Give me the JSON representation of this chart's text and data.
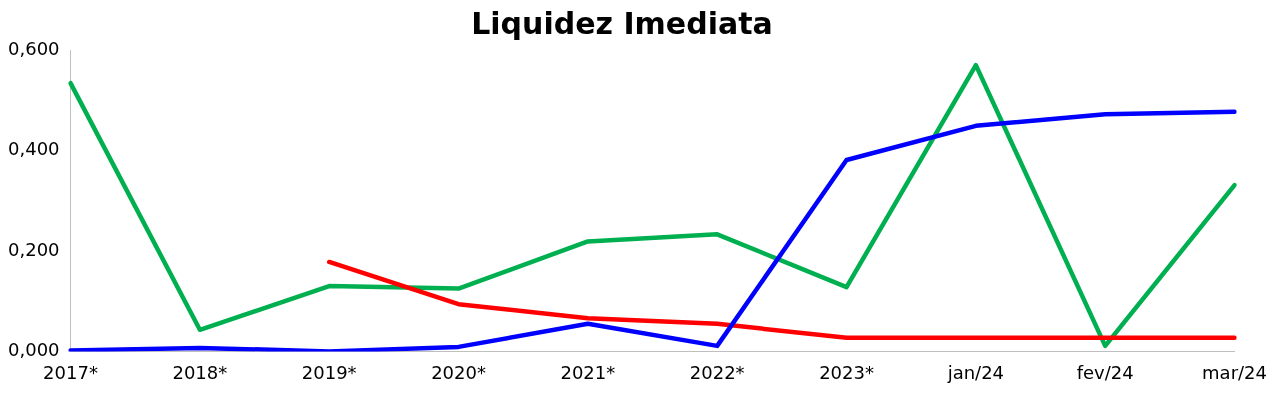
{
  "chart_data": {
    "type": "line",
    "title": "Liquidez Imediata",
    "categories": [
      "2017*",
      "2018*",
      "2019*",
      "2020*",
      "2021*",
      "2022*",
      "2023*",
      "jan/24",
      "fev/24",
      "mar/24"
    ],
    "series": [
      {
        "color": "#0000ff",
        "values": [
          0.002,
          0.007,
          0.0,
          0.009,
          0.055,
          0.011,
          0.381,
          0.449,
          0.472,
          0.477
        ]
      },
      {
        "color": "#ff0000",
        "values": [
          null,
          null,
          0.178,
          0.094,
          0.066,
          0.055,
          0.027,
          0.027,
          0.027,
          0.027
        ]
      },
      {
        "color": "#00b050",
        "values": [
          0.534,
          0.043,
          0.13,
          0.125,
          0.219,
          0.233,
          0.128,
          0.57,
          0.011,
          0.331
        ]
      }
    ],
    "ylim": [
      0,
      0.6
    ],
    "yticks": [
      {
        "value": 0,
        "label": "0,000"
      },
      {
        "value": 0.2,
        "label": "0,200"
      },
      {
        "value": 0.4,
        "label": "0,400"
      },
      {
        "value": 0.6,
        "label": "0,600"
      }
    ],
    "grid": false,
    "legend": false,
    "marker": "none",
    "line_style": "solid"
  }
}
